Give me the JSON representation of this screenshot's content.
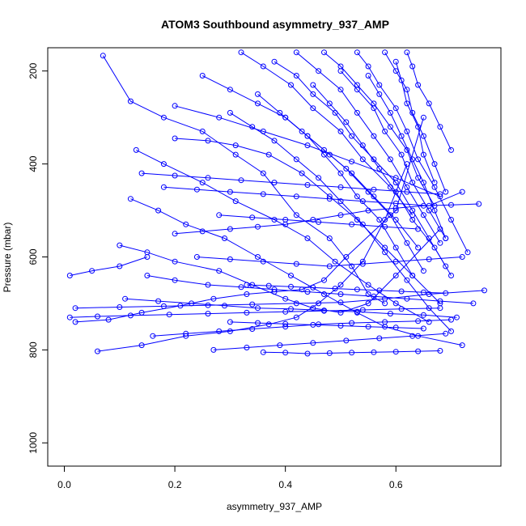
{
  "chart_data": {
    "type": "line",
    "title": "ATOM3 Southbound asymmetry_937_AMP",
    "xlabel": "asymmetry_937_AMP",
    "ylabel": "Pressure (mbar)",
    "xlim": [
      -0.03,
      0.79
    ],
    "ylim": [
      1050,
      150
    ],
    "y_reversed": true,
    "x_ticks": [
      0.0,
      0.2,
      0.4,
      0.6
    ],
    "x_tick_labels": [
      "0.0",
      "0.2",
      "0.4",
      "0.6"
    ],
    "y_ticks": [
      200,
      400,
      600,
      800,
      1000
    ],
    "y_tick_labels": [
      "200",
      "400",
      "600",
      "800",
      "1000"
    ],
    "grid": false,
    "legend": "none",
    "colors": {
      "series": "#0000ff",
      "axis": "#000000"
    },
    "marker": "open-circle",
    "series": [
      {
        "x": [
          0.07,
          0.12,
          0.18,
          0.25,
          0.31,
          0.36,
          0.42,
          0.48,
          0.52,
          0.55,
          0.58
        ],
        "y": [
          167,
          265,
          300,
          330,
          380,
          420,
          510,
          560,
          620,
          680,
          700
        ]
      },
      {
        "x": [
          0.02,
          0.08,
          0.14,
          0.21,
          0.27,
          0.33,
          0.38,
          0.43,
          0.47,
          0.51,
          0.6,
          0.65
        ],
        "y": [
          740,
          735,
          720,
          705,
          690,
          680,
          675,
          670,
          650,
          600,
          500,
          300
        ]
      },
      {
        "x": [
          0.06,
          0.14,
          0.22,
          0.3,
          0.37,
          0.42,
          0.46,
          0.5,
          0.54,
          0.58,
          0.62
        ],
        "y": [
          803,
          790,
          770,
          760,
          745,
          730,
          700,
          660,
          610,
          520,
          400
        ]
      },
      {
        "x": [
          0.1,
          0.15,
          0.2,
          0.28,
          0.34,
          0.4,
          0.45,
          0.5,
          0.55,
          0.6,
          0.68
        ],
        "y": [
          575,
          590,
          610,
          630,
          660,
          690,
          710,
          720,
          700,
          640,
          540
        ]
      },
      {
        "x": [
          0.12,
          0.17,
          0.22,
          0.29,
          0.35,
          0.41,
          0.47,
          0.53,
          0.58,
          0.64,
          0.72
        ],
        "y": [
          475,
          500,
          530,
          560,
          600,
          640,
          680,
          720,
          750,
          770,
          790
        ]
      },
      {
        "x": [
          0.13,
          0.18,
          0.25,
          0.31,
          0.38,
          0.44,
          0.49,
          0.55,
          0.6,
          0.66
        ],
        "y": [
          370,
          400,
          440,
          480,
          520,
          560,
          610,
          660,
          700,
          740
        ]
      },
      {
        "x": [
          0.2,
          0.26,
          0.31,
          0.37,
          0.43,
          0.48,
          0.53,
          0.58,
          0.63,
          0.68
        ],
        "y": [
          345,
          350,
          360,
          380,
          420,
          470,
          520,
          580,
          640,
          700
        ]
      },
      {
        "x": [
          0.25,
          0.3,
          0.35,
          0.4,
          0.44,
          0.48,
          0.52,
          0.56,
          0.6,
          0.64
        ],
        "y": [
          210,
          240,
          270,
          300,
          340,
          380,
          420,
          470,
          520,
          580
        ]
      },
      {
        "x": [
          0.3,
          0.34,
          0.38,
          0.42,
          0.46,
          0.5,
          0.54,
          0.58,
          0.62,
          0.66,
          0.7
        ],
        "y": [
          290,
          320,
          350,
          390,
          430,
          480,
          530,
          590,
          650,
          710,
          760
        ]
      },
      {
        "x": [
          0.32,
          0.36,
          0.41,
          0.45,
          0.5,
          0.54,
          0.59,
          0.63
        ],
        "y": [
          160,
          190,
          230,
          280,
          330,
          390,
          450,
          510
        ]
      },
      {
        "x": [
          0.35,
          0.39,
          0.43,
          0.47,
          0.51,
          0.55,
          0.59,
          0.62,
          0.65
        ],
        "y": [
          250,
          290,
          330,
          370,
          410,
          460,
          510,
          570,
          630
        ]
      },
      {
        "x": [
          0.38,
          0.42,
          0.45,
          0.49,
          0.52,
          0.56,
          0.6,
          0.63,
          0.66,
          0.69
        ],
        "y": [
          180,
          210,
          250,
          290,
          340,
          390,
          440,
          500,
          560,
          620
        ]
      },
      {
        "x": [
          0.4,
          0.44,
          0.47,
          0.5,
          0.53,
          0.57,
          0.6,
          0.63
        ],
        "y": [
          300,
          340,
          380,
          420,
          470,
          520,
          580,
          640
        ]
      },
      {
        "x": [
          0.42,
          0.46,
          0.5,
          0.53,
          0.56,
          0.59,
          0.62,
          0.65,
          0.68
        ],
        "y": [
          160,
          200,
          240,
          290,
          340,
          390,
          450,
          510,
          570
        ]
      },
      {
        "x": [
          0.45,
          0.48,
          0.51,
          0.54,
          0.57,
          0.6,
          0.63,
          0.67,
          0.7
        ],
        "y": [
          230,
          270,
          310,
          360,
          410,
          460,
          520,
          580,
          640
        ]
      },
      {
        "x": [
          0.47,
          0.5,
          0.53,
          0.56,
          0.59,
          0.62,
          0.64,
          0.67
        ],
        "y": [
          160,
          190,
          230,
          270,
          320,
          370,
          430,
          490
        ]
      },
      {
        "x": [
          0.5,
          0.53,
          0.56,
          0.58,
          0.61,
          0.63,
          0.66,
          0.69
        ],
        "y": [
          200,
          240,
          280,
          330,
          380,
          440,
          500,
          560
        ]
      },
      {
        "x": [
          0.53,
          0.55,
          0.57,
          0.6,
          0.62,
          0.64,
          0.67,
          0.7,
          0.73
        ],
        "y": [
          160,
          190,
          230,
          280,
          330,
          390,
          450,
          520,
          590
        ]
      },
      {
        "x": [
          0.55,
          0.57,
          0.59,
          0.61,
          0.63,
          0.65,
          0.67,
          0.69
        ],
        "y": [
          210,
          250,
          290,
          340,
          390,
          440,
          500,
          560
        ]
      },
      {
        "x": [
          0.58,
          0.6,
          0.62,
          0.63,
          0.65,
          0.67,
          0.69
        ],
        "y": [
          160,
          200,
          240,
          290,
          340,
          400,
          460
        ]
      },
      {
        "x": [
          0.6,
          0.61,
          0.62,
          0.64,
          0.65,
          0.67
        ],
        "y": [
          180,
          220,
          270,
          320,
          380,
          440
        ]
      },
      {
        "x": [
          0.62,
          0.63,
          0.64,
          0.66,
          0.68,
          0.7
        ],
        "y": [
          160,
          190,
          230,
          270,
          320,
          370
        ]
      },
      {
        "x": [
          0.15,
          0.2,
          0.26,
          0.32,
          0.38,
          0.44,
          0.5,
          0.56,
          0.62,
          0.68,
          0.74
        ],
        "y": [
          640,
          650,
          660,
          665,
          670,
          675,
          680,
          685,
          690,
          695,
          700
        ]
      },
      {
        "x": [
          0.11,
          0.17,
          0.23,
          0.29,
          0.35,
          0.41,
          0.47,
          0.53,
          0.59,
          0.65,
          0.71
        ],
        "y": [
          690,
          695,
          700,
          705,
          710,
          712,
          715,
          718,
          722,
          725,
          730
        ]
      },
      {
        "x": [
          0.02,
          0.1,
          0.18,
          0.26,
          0.34,
          0.42,
          0.5,
          0.58,
          0.66,
          0.76
        ],
        "y": [
          710,
          708,
          706,
          704,
          702,
          700,
          698,
          690,
          680,
          672
        ]
      },
      {
        "x": [
          0.16,
          0.22,
          0.28,
          0.34,
          0.4,
          0.46,
          0.52,
          0.58,
          0.64,
          0.7
        ],
        "y": [
          770,
          765,
          760,
          755,
          750,
          745,
          742,
          740,
          738,
          735
        ]
      },
      {
        "x": [
          0.27,
          0.33,
          0.39,
          0.45,
          0.51,
          0.57,
          0.63,
          0.69
        ],
        "y": [
          800,
          795,
          790,
          785,
          780,
          775,
          770,
          765
        ]
      },
      {
        "x": [
          0.36,
          0.4,
          0.44,
          0.48,
          0.52,
          0.56,
          0.6,
          0.64,
          0.68
        ],
        "y": [
          805,
          806,
          808,
          807,
          806,
          805,
          804,
          803,
          802
        ]
      },
      {
        "x": [
          0.2,
          0.25,
          0.3,
          0.35,
          0.4,
          0.45,
          0.5,
          0.55,
          0.6,
          0.65,
          0.7,
          0.75
        ],
        "y": [
          550,
          545,
          540,
          535,
          530,
          520,
          510,
          500,
          495,
          490,
          488,
          486
        ]
      },
      {
        "x": [
          0.18,
          0.24,
          0.3,
          0.36,
          0.42,
          0.48,
          0.54,
          0.6,
          0.66,
          0.72
        ],
        "y": [
          450,
          455,
          460,
          465,
          470,
          475,
          480,
          485,
          490,
          460
        ]
      },
      {
        "x": [
          0.14,
          0.2,
          0.26,
          0.32,
          0.38,
          0.44,
          0.5,
          0.56,
          0.62,
          0.68
        ],
        "y": [
          420,
          425,
          430,
          435,
          440,
          445,
          450,
          455,
          460,
          465
        ]
      },
      {
        "x": [
          0.24,
          0.3,
          0.36,
          0.42,
          0.48,
          0.54,
          0.6,
          0.66,
          0.72
        ],
        "y": [
          600,
          605,
          610,
          615,
          620,
          615,
          610,
          605,
          600
        ]
      },
      {
        "x": [
          0.01,
          0.06,
          0.12,
          0.19,
          0.26,
          0.33,
          0.4,
          0.47,
          0.54,
          0.61,
          0.68
        ],
        "y": [
          730,
          728,
          726,
          724,
          722,
          720,
          718,
          716,
          714,
          712,
          710
        ]
      },
      {
        "x": [
          0.01,
          0.05,
          0.1,
          0.15
        ],
        "y": [
          640,
          630,
          620,
          600
        ]
      },
      {
        "x": [
          0.2,
          0.28,
          0.36,
          0.44,
          0.52,
          0.6,
          0.68
        ],
        "y": [
          275,
          300,
          330,
          360,
          395,
          430,
          470
        ]
      },
      {
        "x": [
          0.28,
          0.34,
          0.4,
          0.46,
          0.52,
          0.58,
          0.64
        ],
        "y": [
          510,
          515,
          520,
          525,
          530,
          535,
          540
        ]
      },
      {
        "x": [
          0.33,
          0.37,
          0.41,
          0.45,
          0.49,
          0.53,
          0.57,
          0.61,
          0.65,
          0.69
        ],
        "y": [
          660,
          662,
          664,
          666,
          668,
          670,
          672,
          674,
          676,
          678
        ]
      },
      {
        "x": [
          0.3,
          0.35,
          0.4,
          0.45,
          0.5,
          0.55,
          0.6,
          0.65
        ],
        "y": [
          740,
          742,
          744,
          746,
          748,
          750,
          752,
          754
        ]
      }
    ]
  }
}
